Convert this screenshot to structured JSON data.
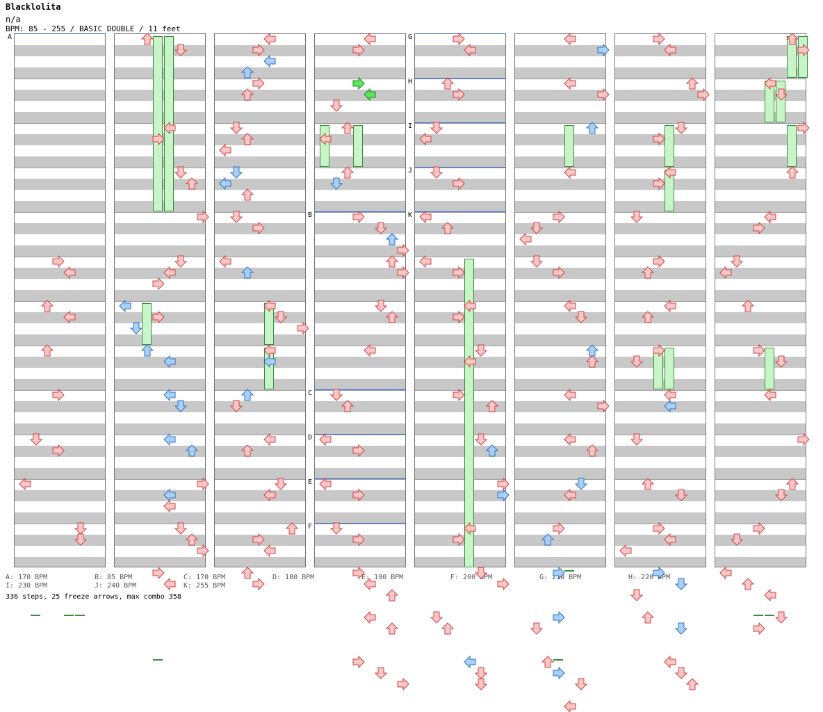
{
  "song": {
    "title": "Blacklolita",
    "artist": "n/a",
    "info": "BPM: 85 - 255 / BASIC DOUBLE / 11 feet"
  },
  "markers": {
    "A": "A",
    "B": "B",
    "C": "C",
    "D": "D",
    "E": "E",
    "F": "F",
    "G": "G",
    "H": "H",
    "I": "I",
    "J": "J",
    "K": "K"
  },
  "legend": [
    "A: 170 BPM",
    "B: 85 BPM",
    "C: 170 BPM",
    "D: 180 BPM",
    "E: 190 BPM",
    "F: 200 BPM",
    "G: 210 BPM",
    "H: 220 BPM",
    "I: 230 BPM",
    "J: 240 BPM",
    "K: 255 BPM"
  ],
  "summary": "336 steps, 25 freeze arrows, max combo 358",
  "colors": {
    "red_fill": "#f8c8c8",
    "red_stroke": "#d04040",
    "blue_fill": "#a8d0f8",
    "blue_stroke": "#3070c0",
    "green_fill": "#58e858",
    "green_stroke": "#208020",
    "freeze_fill": "#c8f5c8",
    "freeze_stroke": "#3c8a3c",
    "bpm_line": "#3a6fd8"
  },
  "icons": {
    "left": "left-arrow-icon",
    "down": "down-arrow-icon",
    "up": "up-arrow-icon",
    "right": "right-arrow-icon"
  },
  "arrows": [
    [
      0,
      3,
      5,
      "r"
    ],
    [
      0,
      4,
      5,
      "r"
    ],
    [
      0,
      2,
      6,
      "r"
    ],
    [
      0,
      8,
      5,
      "r"
    ],
    [
      0,
      4,
      6,
      "r"
    ],
    [
      0,
      2,
      7,
      "r"
    ],
    [
      0,
      3,
      8,
      "r"
    ],
    [
      0,
      1,
      9,
      "r"
    ],
    [
      0,
      0,
      10,
      "r"
    ],
    [
      0,
      3,
      9,
      "r"
    ],
    [
      0,
      5,
      11,
      "r"
    ],
    [
      0,
      5,
      11,
      "r"
    ],
    [
      1,
      2,
      0,
      "r"
    ],
    [
      1,
      5,
      0,
      "r"
    ],
    [
      1,
      4,
      2,
      "r"
    ],
    [
      1,
      3,
      2,
      "r"
    ],
    [
      1,
      5,
      3,
      "r"
    ],
    [
      1,
      6,
      3,
      "r"
    ],
    [
      1,
      7,
      4,
      "r"
    ],
    [
      1,
      8,
      4,
      "r"
    ],
    [
      1,
      5,
      5,
      "r"
    ],
    [
      1,
      4,
      5,
      "r"
    ],
    [
      1,
      3,
      5,
      "r"
    ],
    [
      1,
      0,
      6,
      "b"
    ],
    [
      1,
      3,
      6,
      "r"
    ],
    [
      1,
      1,
      6,
      "b"
    ],
    [
      1,
      2,
      7,
      "b"
    ],
    [
      1,
      4,
      7,
      "b"
    ],
    [
      1,
      4,
      8,
      "b"
    ],
    [
      1,
      5,
      8,
      "b"
    ],
    [
      1,
      4,
      9,
      "b"
    ],
    [
      1,
      6,
      9,
      "b"
    ],
    [
      1,
      7,
      10,
      "r"
    ],
    [
      1,
      4,
      10,
      "b"
    ],
    [
      1,
      4,
      10,
      "r"
    ],
    [
      1,
      5,
      11,
      "r"
    ],
    [
      1,
      6,
      11,
      "r"
    ],
    [
      1,
      7,
      11,
      "r"
    ],
    [
      1,
      3,
      12,
      "r"
    ],
    [
      1,
      4,
      12,
      "r"
    ],
    [
      2,
      4,
      0,
      "r"
    ],
    [
      2,
      3,
      0,
      "r"
    ],
    [
      2,
      4,
      0,
      "b"
    ],
    [
      2,
      2,
      0,
      "b"
    ],
    [
      2,
      3,
      1,
      "r"
    ],
    [
      2,
      2,
      1,
      "r"
    ],
    [
      2,
      1,
      2,
      "r"
    ],
    [
      2,
      2,
      2,
      "r"
    ],
    [
      2,
      0,
      2,
      "r"
    ],
    [
      2,
      1,
      3,
      "b"
    ],
    [
      2,
      0,
      3,
      "b"
    ],
    [
      2,
      2,
      3,
      "r"
    ],
    [
      2,
      1,
      4,
      "r"
    ],
    [
      2,
      3,
      4,
      "r"
    ],
    [
      2,
      0,
      5,
      "r"
    ],
    [
      2,
      2,
      5,
      "b"
    ],
    [
      2,
      4,
      6,
      "r"
    ],
    [
      2,
      5,
      6,
      "r"
    ],
    [
      2,
      7,
      6,
      "r"
    ],
    [
      2,
      4,
      7,
      "r"
    ],
    [
      2,
      4,
      7,
      "b"
    ],
    [
      2,
      2,
      8,
      "b"
    ],
    [
      2,
      1,
      8,
      "r"
    ],
    [
      2,
      4,
      9,
      "r"
    ],
    [
      2,
      2,
      9,
      "r"
    ],
    [
      2,
      5,
      10,
      "r"
    ],
    [
      2,
      4,
      10,
      "r"
    ],
    [
      2,
      6,
      11,
      "r"
    ],
    [
      2,
      3,
      11,
      "r"
    ],
    [
      2,
      4,
      11,
      "r"
    ],
    [
      2,
      2,
      12,
      "r"
    ],
    [
      2,
      3,
      12,
      "r"
    ],
    [
      3,
      4,
      0,
      "r"
    ],
    [
      3,
      3,
      0,
      "r"
    ],
    [
      3,
      3,
      1,
      "g"
    ],
    [
      3,
      4,
      1,
      "g"
    ],
    [
      3,
      1,
      1,
      "r"
    ],
    [
      3,
      2,
      2,
      "r"
    ],
    [
      3,
      0,
      2,
      "r"
    ],
    [
      3,
      2,
      3,
      "r"
    ],
    [
      3,
      1,
      3,
      "b"
    ],
    [
      3,
      3,
      4,
      "r"
    ],
    [
      3,
      5,
      4,
      "r"
    ],
    [
      3,
      6,
      4,
      "b"
    ],
    [
      3,
      7,
      4,
      "r"
    ],
    [
      3,
      6,
      5,
      "r"
    ],
    [
      3,
      7,
      5,
      "r"
    ],
    [
      3,
      5,
      6,
      "r"
    ],
    [
      3,
      6,
      6,
      "r"
    ],
    [
      3,
      4,
      7,
      "r"
    ],
    [
      3,
      1,
      8,
      "r"
    ],
    [
      3,
      2,
      8,
      "r"
    ],
    [
      3,
      0,
      9,
      "r"
    ],
    [
      3,
      3,
      9,
      "r"
    ],
    [
      3,
      0,
      10,
      "r"
    ],
    [
      3,
      3,
      10,
      "r"
    ],
    [
      3,
      1,
      11,
      "r"
    ],
    [
      3,
      3,
      11,
      "r"
    ],
    [
      3,
      3,
      12,
      "r"
    ],
    [
      3,
      4,
      12,
      "r"
    ],
    [
      3,
      6,
      12,
      "r"
    ],
    [
      3,
      4,
      13,
      "r"
    ],
    [
      3,
      6,
      13,
      "r"
    ],
    [
      3,
      3,
      14,
      "r"
    ],
    [
      3,
      5,
      14,
      "r"
    ],
    [
      3,
      7,
      14,
      "r"
    ],
    [
      4,
      3,
      0,
      "r"
    ],
    [
      4,
      4,
      0,
      "r"
    ],
    [
      4,
      2,
      1,
      "r"
    ],
    [
      4,
      3,
      1,
      "r"
    ],
    [
      4,
      1,
      2,
      "r"
    ],
    [
      4,
      0,
      2,
      "r"
    ],
    [
      4,
      1,
      3,
      "r"
    ],
    [
      4,
      3,
      3,
      "r"
    ],
    [
      4,
      0,
      4,
      "r"
    ],
    [
      4,
      2,
      4,
      "r"
    ],
    [
      4,
      0,
      5,
      "r"
    ],
    [
      4,
      3,
      5,
      "r"
    ],
    [
      4,
      4,
      6,
      "r"
    ],
    [
      4,
      3,
      6,
      "r"
    ],
    [
      4,
      5,
      7,
      "r"
    ],
    [
      4,
      4,
      7,
      "r"
    ],
    [
      4,
      3,
      8,
      "r"
    ],
    [
      4,
      6,
      8,
      "r"
    ],
    [
      4,
      5,
      9,
      "r"
    ],
    [
      4,
      6,
      9,
      "b"
    ],
    [
      4,
      7,
      10,
      "r"
    ],
    [
      4,
      7,
      10,
      "b"
    ],
    [
      4,
      4,
      11,
      "r"
    ],
    [
      4,
      3,
      11,
      "r"
    ],
    [
      4,
      5,
      12,
      "r"
    ],
    [
      4,
      7,
      12,
      "r"
    ],
    [
      4,
      1,
      13,
      "r"
    ],
    [
      4,
      2,
      13,
      "r"
    ],
    [
      4,
      4,
      14,
      "b"
    ],
    [
      4,
      5,
      14,
      "r"
    ],
    [
      4,
      5,
      14,
      "r"
    ],
    [
      5,
      4,
      0,
      "r"
    ],
    [
      5,
      7,
      0,
      "b"
    ],
    [
      5,
      4,
      1,
      "r"
    ],
    [
      5,
      7,
      1,
      "r"
    ],
    [
      5,
      6,
      2,
      "b"
    ],
    [
      5,
      4,
      3,
      "r"
    ],
    [
      5,
      3,
      4,
      "r"
    ],
    [
      5,
      1,
      4,
      "r"
    ],
    [
      5,
      0,
      4,
      "r"
    ],
    [
      5,
      1,
      5,
      "r"
    ],
    [
      5,
      3,
      5,
      "r"
    ],
    [
      5,
      4,
      6,
      "r"
    ],
    [
      5,
      5,
      6,
      "r"
    ],
    [
      5,
      6,
      7,
      "b"
    ],
    [
      5,
      6,
      7,
      "r"
    ],
    [
      5,
      4,
      8,
      "r"
    ],
    [
      5,
      7,
      8,
      "r"
    ],
    [
      5,
      4,
      9,
      "r"
    ],
    [
      5,
      6,
      9,
      "r"
    ],
    [
      5,
      5,
      10,
      "b"
    ],
    [
      5,
      4,
      10,
      "r"
    ],
    [
      5,
      3,
      11,
      "r"
    ],
    [
      5,
      2,
      11,
      "b"
    ],
    [
      5,
      3,
      12,
      "b"
    ],
    [
      5,
      3,
      13,
      "b"
    ],
    [
      5,
      1,
      13,
      "r"
    ],
    [
      5,
      2,
      14,
      "r"
    ],
    [
      5,
      3,
      14,
      "b"
    ],
    [
      5,
      5,
      14,
      "r"
    ],
    [
      5,
      4,
      15,
      "r"
    ],
    [
      6,
      3,
      0,
      "r"
    ],
    [
      6,
      4,
      0,
      "r"
    ],
    [
      6,
      6,
      1,
      "r"
    ],
    [
      6,
      7,
      1,
      "r"
    ],
    [
      6,
      5,
      2,
      "r"
    ],
    [
      6,
      3,
      2,
      "r"
    ],
    [
      6,
      4,
      3,
      "r"
    ],
    [
      6,
      3,
      3,
      "r"
    ],
    [
      6,
      1,
      4,
      "r"
    ],
    [
      6,
      3,
      5,
      "r"
    ],
    [
      6,
      2,
      5,
      "r"
    ],
    [
      6,
      4,
      6,
      "r"
    ],
    [
      6,
      2,
      6,
      "r"
    ],
    [
      6,
      3,
      7,
      "r"
    ],
    [
      6,
      1,
      7,
      "r"
    ],
    [
      6,
      4,
      8,
      "r"
    ],
    [
      6,
      4,
      8,
      "b"
    ],
    [
      6,
      1,
      9,
      "r"
    ],
    [
      6,
      2,
      10,
      "r"
    ],
    [
      6,
      5,
      10,
      "r"
    ],
    [
      6,
      3,
      11,
      "r"
    ],
    [
      6,
      4,
      11,
      "r"
    ],
    [
      6,
      0,
      11,
      "r"
    ],
    [
      6,
      3,
      12,
      "b"
    ],
    [
      6,
      5,
      12,
      "b"
    ],
    [
      6,
      1,
      12,
      "r"
    ],
    [
      6,
      2,
      13,
      "r"
    ],
    [
      6,
      5,
      13,
      "b"
    ],
    [
      6,
      4,
      14,
      "r"
    ],
    [
      6,
      5,
      14,
      "r"
    ],
    [
      6,
      6,
      14,
      "r"
    ],
    [
      7,
      6,
      0,
      "r"
    ],
    [
      7,
      7,
      0,
      "r"
    ],
    [
      7,
      4,
      1,
      "r"
    ],
    [
      7,
      5,
      1,
      "r"
    ],
    [
      7,
      7,
      2,
      "r"
    ],
    [
      7,
      6,
      3,
      "r"
    ],
    [
      7,
      4,
      4,
      "r"
    ],
    [
      7,
      3,
      4,
      "r"
    ],
    [
      7,
      1,
      5,
      "r"
    ],
    [
      7,
      0,
      5,
      "r"
    ],
    [
      7,
      2,
      6,
      "r"
    ],
    [
      7,
      3,
      7,
      "r"
    ],
    [
      7,
      5,
      7,
      "r"
    ],
    [
      7,
      4,
      8,
      "r"
    ],
    [
      7,
      7,
      9,
      "r"
    ],
    [
      7,
      6,
      10,
      "r"
    ],
    [
      7,
      5,
      10,
      "r"
    ],
    [
      7,
      3,
      11,
      "r"
    ],
    [
      7,
      1,
      11,
      "r"
    ],
    [
      7,
      0,
      12,
      "r"
    ],
    [
      7,
      2,
      12,
      "r"
    ],
    [
      7,
      4,
      12,
      "r"
    ],
    [
      7,
      5,
      13,
      "r"
    ],
    [
      7,
      3,
      13,
      "r"
    ]
  ],
  "freezes": [
    [
      0,
      1,
      13,
      16
    ],
    [
      0,
      4,
      13,
      16
    ],
    [
      0,
      5,
      13,
      16
    ],
    [
      1,
      3,
      0,
      4
    ],
    [
      1,
      4,
      0,
      4
    ],
    [
      1,
      2,
      6,
      7
    ],
    [
      1,
      3,
      14,
      16
    ],
    [
      2,
      4,
      6,
      7
    ],
    [
      2,
      4,
      7,
      8
    ],
    [
      3,
      0,
      2,
      3
    ],
    [
      3,
      3,
      2,
      3
    ],
    [
      4,
      4,
      5,
      12
    ],
    [
      5,
      4,
      2,
      3
    ],
    [
      5,
      4,
      12,
      13
    ],
    [
      5,
      3,
      13,
      14
    ],
    [
      5,
      3,
      14,
      15
    ],
    [
      6,
      4,
      2,
      3
    ],
    [
      6,
      4,
      3,
      4
    ],
    [
      6,
      3,
      7,
      8
    ],
    [
      6,
      4,
      7,
      8
    ],
    [
      7,
      6,
      0,
      1
    ],
    [
      7,
      7,
      0,
      1
    ],
    [
      7,
      4,
      1,
      2
    ],
    [
      7,
      5,
      1,
      2
    ],
    [
      7,
      6,
      2,
      3
    ],
    [
      7,
      4,
      7,
      8
    ],
    [
      7,
      3,
      13,
      16
    ],
    [
      7,
      4,
      13,
      16
    ]
  ]
}
